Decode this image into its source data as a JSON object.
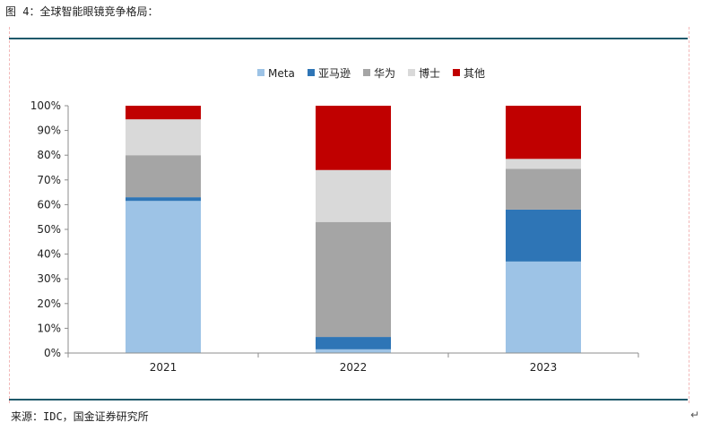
{
  "figure": {
    "title": "图 4：全球智能眼镜竞争格局：",
    "source": "来源：IDC，国金证券研究所",
    "return_mark": "↵"
  },
  "chart_data": {
    "type": "bar",
    "stacked": true,
    "categories": [
      "2021",
      "2022",
      "2023"
    ],
    "series": [
      {
        "name": "Meta",
        "color": "#9dc3e6",
        "values": [
          61.5,
          1.5,
          37.0
        ]
      },
      {
        "name": "亚马逊",
        "color": "#2e75b6",
        "values": [
          1.5,
          5.0,
          21.0
        ]
      },
      {
        "name": "华为",
        "color": "#a5a5a5",
        "values": [
          17.0,
          46.5,
          16.5
        ]
      },
      {
        "name": "博士",
        "color": "#d9d9d9",
        "values": [
          14.5,
          21.0,
          4.0
        ]
      },
      {
        "name": "其他",
        "color": "#c00000",
        "values": [
          5.5,
          26.0,
          21.5
        ]
      }
    ],
    "ylim": [
      0,
      100
    ],
    "yticks": [
      "0%",
      "10%",
      "20%",
      "30%",
      "40%",
      "50%",
      "60%",
      "70%",
      "80%",
      "90%",
      "100%"
    ],
    "legend_position": "top-center",
    "grid": false,
    "xlabel": "",
    "ylabel": ""
  }
}
